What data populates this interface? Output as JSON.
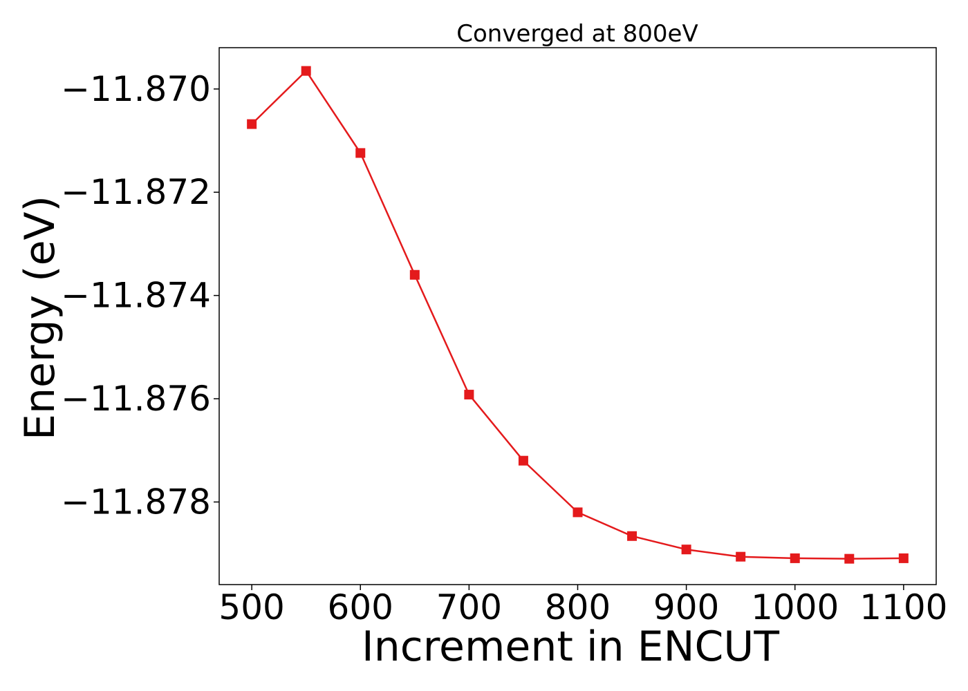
{
  "chart_data": {
    "type": "line",
    "title": "Converged at 800eV",
    "xlabel": "Increment in ENCUT",
    "ylabel": "Energy (eV)",
    "xlim": [
      470,
      1130
    ],
    "ylim": [
      -11.8796,
      -11.8692
    ],
    "x_ticks": [
      500,
      600,
      700,
      800,
      900,
      1000,
      1100
    ],
    "x_tick_labels": [
      "500",
      "600",
      "700",
      "800",
      "900",
      "1000",
      "1100"
    ],
    "y_ticks": [
      -11.87,
      -11.872,
      -11.874,
      -11.876,
      -11.878
    ],
    "y_tick_labels": [
      "−11.870",
      "−11.872",
      "−11.874",
      "−11.876",
      "−11.878"
    ],
    "grid": false,
    "marker": "square",
    "series": [
      {
        "color": "#e41a1c",
        "x": [
          500,
          550,
          600,
          650,
          700,
          750,
          800,
          850,
          900,
          950,
          1000,
          1050,
          1100
        ],
        "values": [
          -11.87068,
          -11.86965,
          -11.87124,
          -11.8736,
          -11.87592,
          -11.8772,
          -11.8782,
          -11.87866,
          -11.87892,
          -11.87906,
          -11.87909,
          -11.8791,
          -11.87909
        ]
      }
    ]
  }
}
